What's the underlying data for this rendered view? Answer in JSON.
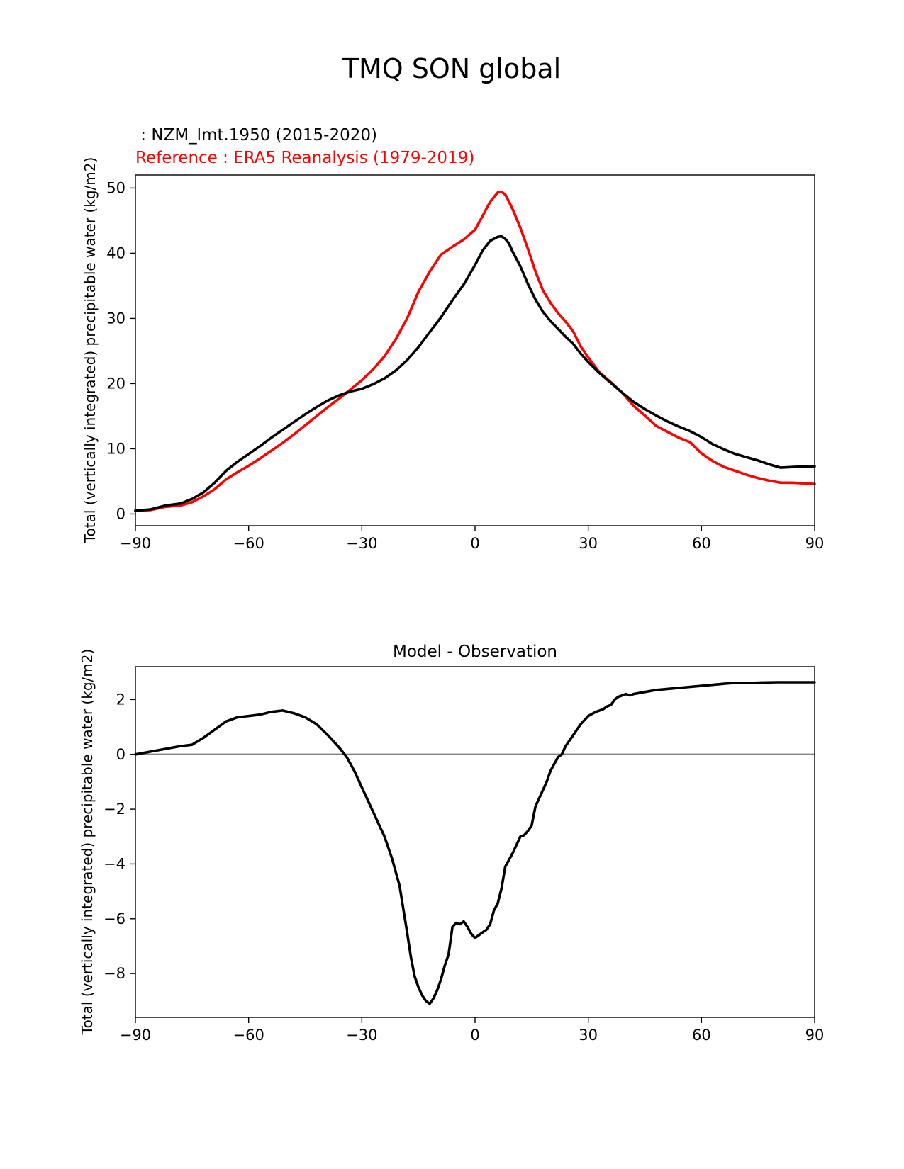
{
  "page_title": "TMQ SON global",
  "chart_data": [
    {
      "type": "line",
      "title": "",
      "subtitle_model": " : NZM_lmt.1950 (2015-2020)",
      "subtitle_reference": "Reference : ERA5 Reanalysis (1979-2019)",
      "xlabel": "",
      "ylabel": "Total (vertically integrated) precipitable water (kg/m2)",
      "xlim": [
        -90,
        90
      ],
      "ylim": [
        -1.8,
        52
      ],
      "xticks": [
        -90,
        -60,
        -30,
        0,
        30,
        60,
        90
      ],
      "xtick_labels": [
        "−90",
        "−60",
        "−30",
        "0",
        "30",
        "60",
        "90"
      ],
      "yticks": [
        0,
        10,
        20,
        30,
        40,
        50
      ],
      "ytick_labels": [
        "0",
        "10",
        "20",
        "30",
        "40",
        "50"
      ],
      "grid": false,
      "series": [
        {
          "name": "NZM_lmt.1950 (2015-2020)",
          "color": "#000000",
          "x": [
            -90,
            -86,
            -82,
            -78,
            -75,
            -72,
            -69,
            -66,
            -63,
            -60,
            -57,
            -54,
            -51,
            -48,
            -45,
            -42,
            -39,
            -36,
            -33,
            -30,
            -27,
            -24,
            -21,
            -18,
            -15,
            -12,
            -9,
            -6,
            -3,
            0,
            2,
            4,
            6,
            7,
            8,
            9,
            10,
            12,
            14,
            16,
            18,
            20,
            22,
            24,
            26,
            28,
            30,
            33,
            36,
            39,
            42,
            45,
            48,
            51,
            54,
            57,
            60,
            63,
            66,
            69,
            72,
            75,
            78,
            81,
            84,
            87,
            90
          ],
          "y": [
            0.5,
            0.7,
            1.3,
            1.6,
            2.3,
            3.3,
            4.8,
            6.6,
            8,
            9.2,
            10.4,
            11.7,
            12.9,
            14.1,
            15.3,
            16.4,
            17.4,
            18.2,
            18.8,
            19.2,
            19.9,
            20.8,
            22,
            23.6,
            25.6,
            27.9,
            30.2,
            32.8,
            35.2,
            38.2,
            40.4,
            41.9,
            42.5,
            42.6,
            42.2,
            41.5,
            40.2,
            38,
            35.3,
            32.9,
            31,
            29.6,
            28.4,
            27.2,
            26.1,
            24.6,
            23.3,
            21.6,
            20.1,
            18.6,
            17.2,
            16.1,
            15.1,
            14.2,
            13.4,
            12.7,
            11.8,
            10.7,
            9.9,
            9.2,
            8.7,
            8.2,
            7.6,
            7.1,
            7.2,
            7.3,
            7.3
          ]
        },
        {
          "name": "ERA5 Reanalysis (1979-2019)",
          "color": "#ff0000",
          "x": [
            -90,
            -86,
            -82,
            -78,
            -75,
            -72,
            -69,
            -66,
            -63,
            -60,
            -57,
            -54,
            -51,
            -48,
            -45,
            -42,
            -39,
            -36,
            -33,
            -30,
            -27,
            -24,
            -21,
            -18,
            -15,
            -12,
            -9,
            -6,
            -3,
            0,
            2,
            4,
            6,
            7,
            8,
            9,
            10,
            12,
            14,
            16,
            18,
            20,
            22,
            24,
            26,
            28,
            30,
            33,
            36,
            39,
            42,
            45,
            48,
            51,
            54,
            57,
            60,
            63,
            66,
            69,
            72,
            75,
            78,
            81,
            84,
            87,
            90
          ],
          "y": [
            0.5,
            0.6,
            1.1,
            1.3,
            1.8,
            2.7,
            3.8,
            5.3,
            6.4,
            7.4,
            8.5,
            9.7,
            10.9,
            12.2,
            13.6,
            15,
            16.4,
            17.7,
            19.1,
            20.5,
            22.2,
            24.2,
            26.8,
            30,
            34.1,
            37.2,
            39.8,
            41,
            42.1,
            43.6,
            45.7,
            47.9,
            49.3,
            49.4,
            49,
            47.9,
            46.7,
            43.9,
            40.7,
            37.2,
            34.3,
            32.4,
            30.8,
            29.5,
            28,
            25.7,
            24,
            21.7,
            20.2,
            18.6,
            16.6,
            15.1,
            13.5,
            12.6,
            11.7,
            11,
            9.3,
            8.1,
            7.2,
            6.6,
            6,
            5.5,
            5.1,
            4.8,
            4.8,
            4.7,
            4.6
          ]
        }
      ]
    },
    {
      "type": "line",
      "title": "Model - Observation",
      "xlabel": "",
      "ylabel": "Total (vertically integrated) precipitable water (kg/m2)",
      "xlim": [
        -90,
        90
      ],
      "ylim": [
        -9.6,
        3.2
      ],
      "xticks": [
        -90,
        -60,
        -30,
        0,
        30,
        60,
        90
      ],
      "xtick_labels": [
        "−90",
        "−60",
        "−30",
        "0",
        "30",
        "60",
        "90"
      ],
      "yticks": [
        2,
        0,
        -2,
        -4,
        -6,
        -8
      ],
      "ytick_labels": [
        "2",
        "0",
        "−2",
        "−4",
        "−6",
        "−8"
      ],
      "zero_line_color": "#808080",
      "grid": false,
      "series": [
        {
          "name": "Model - Observation",
          "color": "#000000",
          "x": [
            -90,
            -86,
            -82,
            -78,
            -75,
            -72,
            -69,
            -66,
            -63,
            -60,
            -57,
            -54,
            -51,
            -48,
            -45,
            -42,
            -39,
            -36,
            -34,
            -32,
            -30,
            -28,
            -26,
            -24,
            -22,
            -20,
            -18,
            -17,
            -16,
            -15,
            -14,
            -13,
            -12,
            -11,
            -10,
            -9,
            -8,
            -7,
            -6,
            -5,
            -4,
            -3,
            -2,
            -1,
            0,
            1,
            2,
            3,
            4,
            5,
            6,
            7,
            8,
            10,
            12,
            13,
            14,
            15,
            16,
            17,
            18,
            19,
            20,
            22,
            23,
            24,
            25,
            26,
            27,
            28,
            30,
            32,
            33,
            34,
            35,
            36,
            37,
            38,
            40,
            41,
            42,
            44,
            46,
            48,
            52,
            56,
            60,
            64,
            68,
            72,
            76,
            80,
            84,
            88,
            90
          ],
          "y": [
            0,
            0.1,
            0.2,
            0.3,
            0.35,
            0.6,
            0.9,
            1.2,
            1.35,
            1.4,
            1.45,
            1.55,
            1.6,
            1.5,
            1.35,
            1.1,
            0.7,
            0.25,
            -0.1,
            -0.6,
            -1.2,
            -1.8,
            -2.4,
            -3,
            -3.8,
            -4.8,
            -6.5,
            -7.4,
            -8.1,
            -8.5,
            -8.8,
            -9,
            -9.1,
            -8.9,
            -8.6,
            -8.2,
            -7.7,
            -7.3,
            -6.3,
            -6.15,
            -6.2,
            -6.1,
            -6.3,
            -6.55,
            -6.7,
            -6.6,
            -6.5,
            -6.4,
            -6.2,
            -5.7,
            -5.45,
            -4.9,
            -4.1,
            -3.6,
            -3,
            -2.95,
            -2.8,
            -2.6,
            -1.9,
            -1.6,
            -1.3,
            -1,
            -0.6,
            -0.1,
            0,
            0.3,
            0.5,
            0.7,
            0.9,
            1.1,
            1.4,
            1.55,
            1.6,
            1.65,
            1.75,
            1.8,
            2,
            2.1,
            2.2,
            2.15,
            2.2,
            2.25,
            2.3,
            2.35,
            2.4,
            2.45,
            2.5,
            2.55,
            2.6,
            2.6,
            2.62,
            2.63,
            2.63,
            2.63,
            2.63
          ]
        }
      ]
    }
  ]
}
